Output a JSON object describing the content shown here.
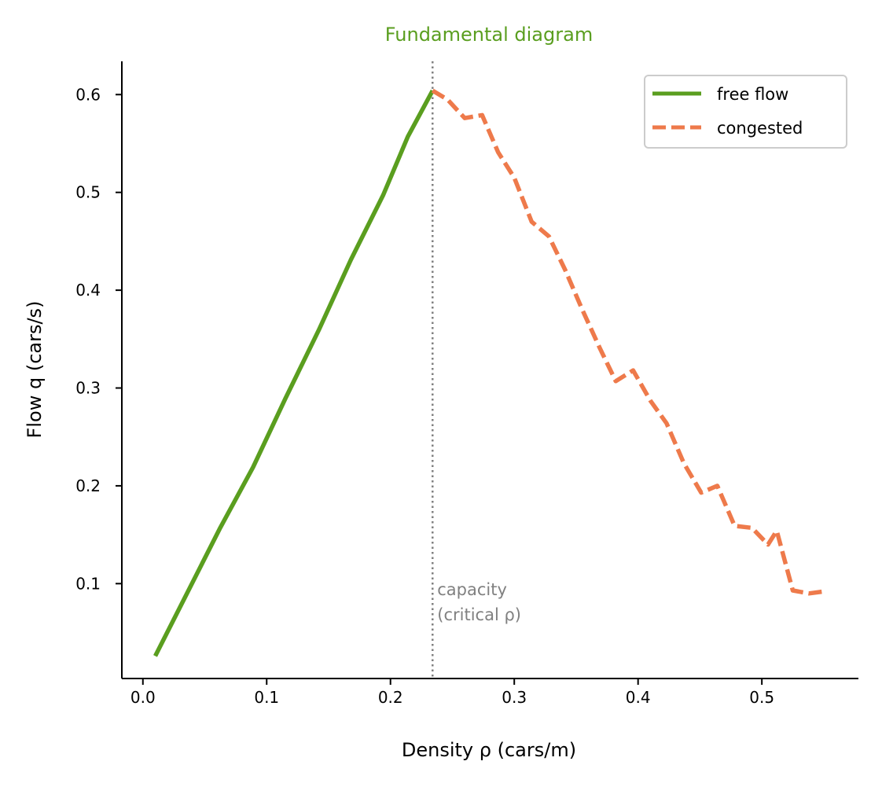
{
  "colors": {
    "free_flow": "#5a9e1f",
    "congested": "#ee7a4b",
    "title": "#5a9e1f",
    "annotation": "#808080",
    "capacity_line": "#808080"
  },
  "chart_data": {
    "type": "line",
    "title": "Fundamental diagram",
    "xlabel": "Density ρ (cars/m)",
    "ylabel": "Flow q (cars/s)",
    "xlim": [
      -0.017,
      0.578
    ],
    "ylim": [
      -0.0
    ],
    "ylim_range": [
      0.003,
      0.634
    ],
    "xticks": [
      0.0,
      0.1,
      0.2,
      0.3,
      0.4,
      0.5
    ],
    "xtick_labels": [
      "0.0",
      "0.1",
      "0.2",
      "0.3",
      "0.4",
      "0.5"
    ],
    "yticks": [
      0.1,
      0.2,
      0.3,
      0.4,
      0.5,
      0.6
    ],
    "ytick_labels": [
      "0.1",
      "0.2",
      "0.3",
      "0.4",
      "0.5",
      "0.6"
    ],
    "grid": false,
    "legend_position": "top-right",
    "series": [
      {
        "name": "free flow",
        "style": "solid",
        "x": [
          0.01,
          0.036,
          0.062,
          0.089,
          0.115,
          0.142,
          0.168,
          0.194,
          0.214,
          0.234
        ],
        "y": [
          0.026,
          0.091,
          0.156,
          0.219,
          0.289,
          0.359,
          0.431,
          0.497,
          0.557,
          0.604
        ]
      },
      {
        "name": "congested",
        "style": "dashed",
        "x": [
          0.234,
          0.246,
          0.26,
          0.274,
          0.287,
          0.3,
          0.314,
          0.328,
          0.341,
          0.355,
          0.369,
          0.382,
          0.396,
          0.41,
          0.423,
          0.437,
          0.451,
          0.464,
          0.478,
          0.492,
          0.505,
          0.512,
          0.525,
          0.538,
          0.55
        ],
        "y": [
          0.604,
          0.595,
          0.576,
          0.579,
          0.541,
          0.515,
          0.47,
          0.455,
          0.421,
          0.38,
          0.341,
          0.307,
          0.318,
          0.287,
          0.264,
          0.223,
          0.193,
          0.2,
          0.159,
          0.157,
          0.14,
          0.154,
          0.093,
          0.09,
          0.092
        ]
      }
    ],
    "capacity_x": 0.234,
    "annotation": {
      "lines": [
        "capacity",
        "(critical ρ)"
      ]
    }
  }
}
